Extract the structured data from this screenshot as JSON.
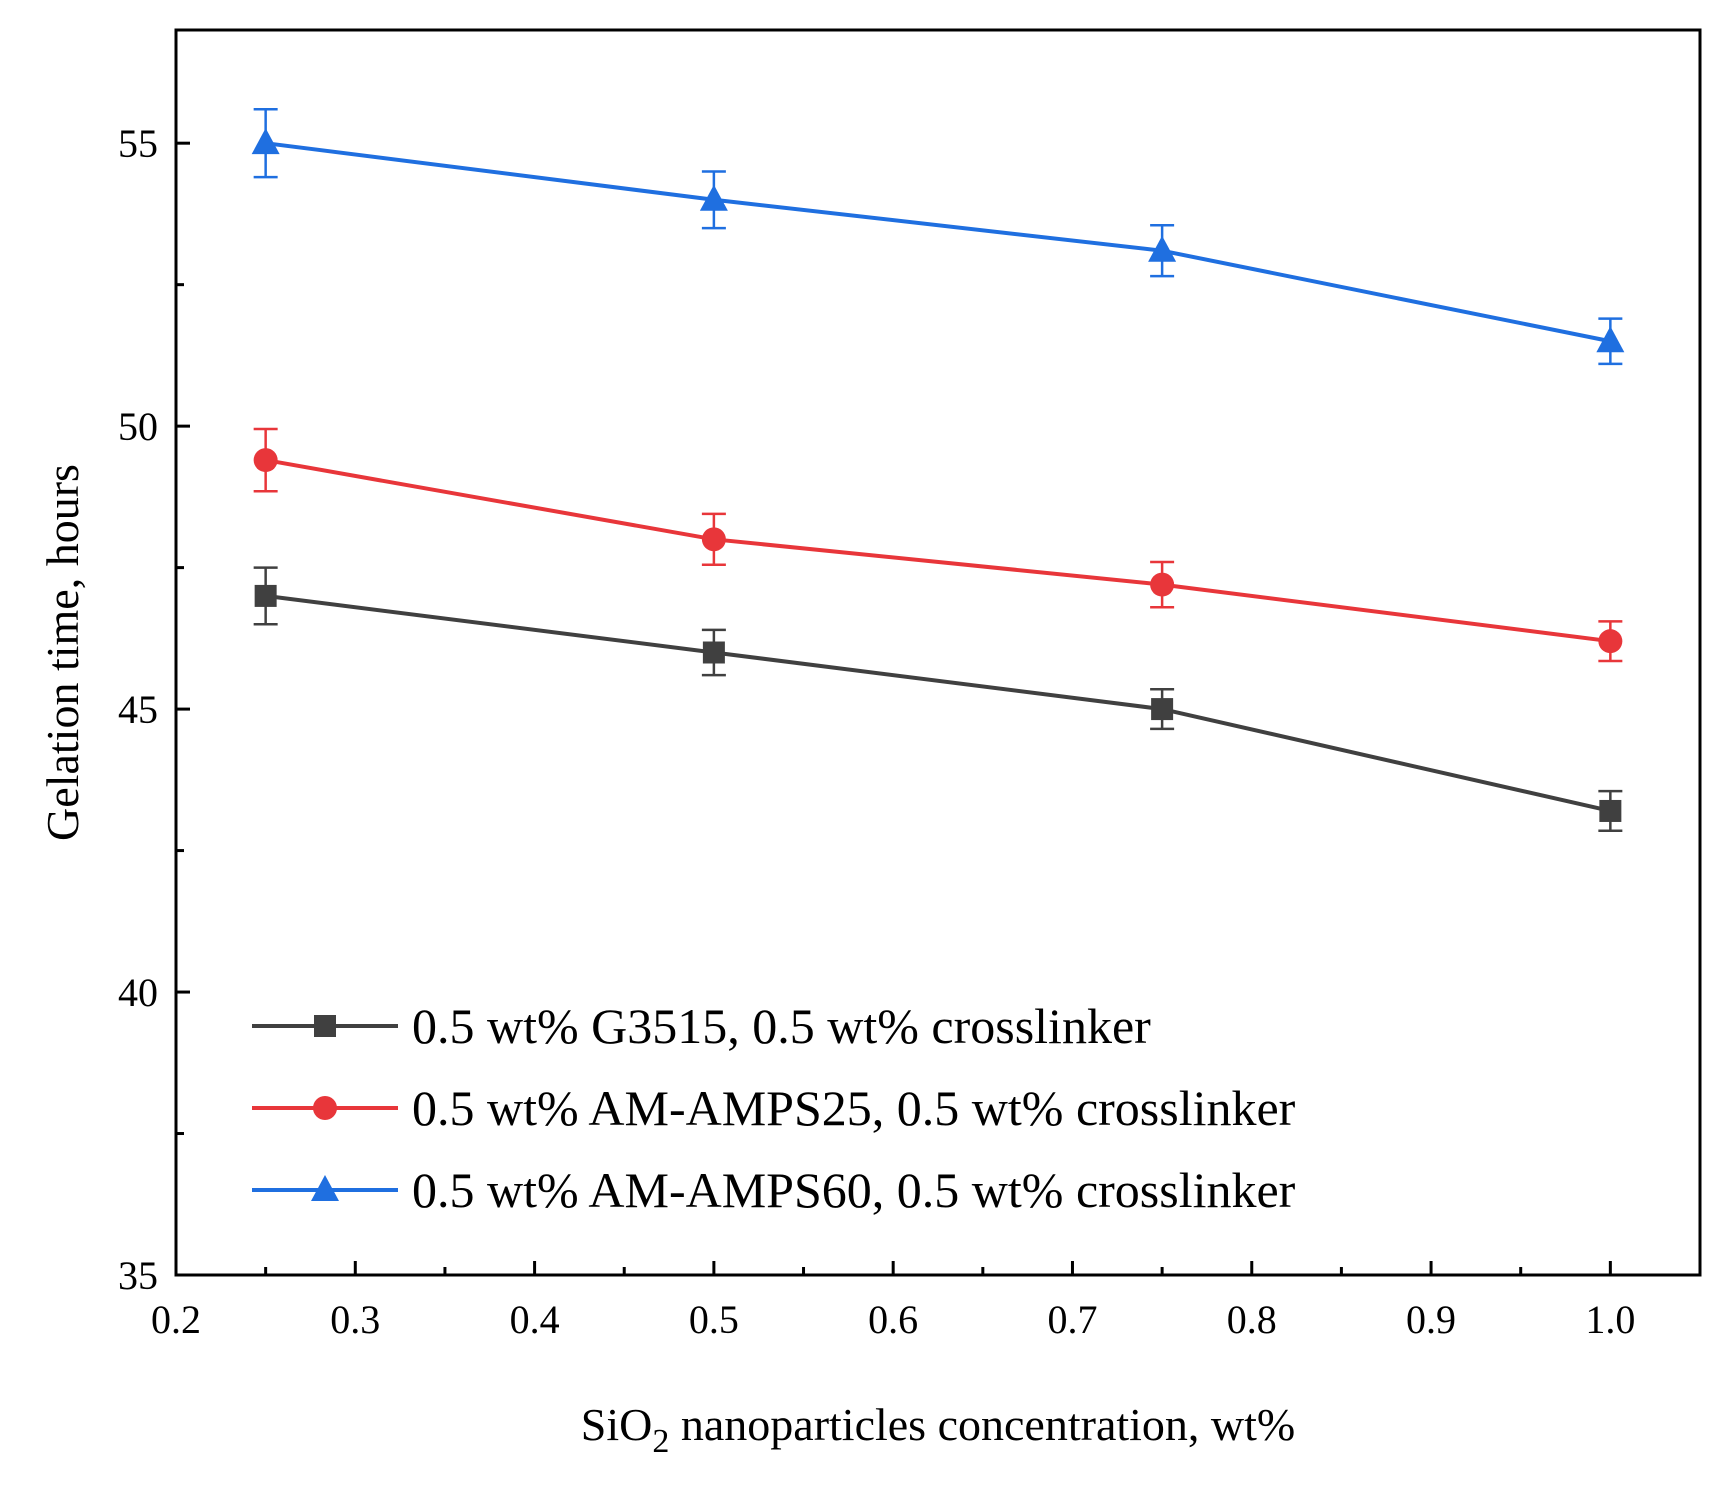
{
  "chart_data": {
    "type": "line",
    "title": "",
    "xlabel": "SiO2 nanoparticles concentration, wt%",
    "xlabel_parts": {
      "pre": "SiO",
      "sub": "2",
      "post": " nanoparticles concentration, wt%"
    },
    "ylabel": "Gelation time, hours",
    "xlim": [
      0.2,
      1.05
    ],
    "ylim": [
      35,
      57
    ],
    "xticks": [
      0.2,
      0.3,
      0.4,
      0.5,
      0.6,
      0.7,
      0.8,
      0.9,
      1.0
    ],
    "xtick_labels": [
      "0.2",
      "0.3",
      "0.4",
      "0.5",
      "0.6",
      "0.7",
      "0.8",
      "0.9",
      "1.0"
    ],
    "yticks": [
      35,
      40,
      45,
      50,
      55
    ],
    "ytick_labels": [
      "35",
      "40",
      "45",
      "50",
      "55"
    ],
    "x": [
      0.25,
      0.5,
      0.75,
      1.0
    ],
    "grid": false,
    "legend_position": "bottom-left",
    "series": [
      {
        "name": "0.5 wt% G3515, 0.5 wt% crosslinker",
        "marker": "square",
        "color": "#404040",
        "values": [
          47.0,
          46.0,
          45.0,
          43.2
        ],
        "errors": [
          0.5,
          0.4,
          0.35,
          0.35
        ]
      },
      {
        "name": "0.5 wt% AM-AMPS25, 0.5 wt% crosslinker",
        "marker": "circle",
        "color": "#e8363a",
        "values": [
          49.4,
          48.0,
          47.2,
          46.2
        ],
        "errors": [
          0.55,
          0.45,
          0.4,
          0.35
        ]
      },
      {
        "name": "0.5 wt% AM-AMPS60, 0.5 wt% crosslinker",
        "marker": "triangle",
        "color": "#1f6fe0",
        "values": [
          55.0,
          54.0,
          53.1,
          51.5
        ],
        "errors": [
          0.6,
          0.5,
          0.45,
          0.4
        ]
      }
    ]
  }
}
